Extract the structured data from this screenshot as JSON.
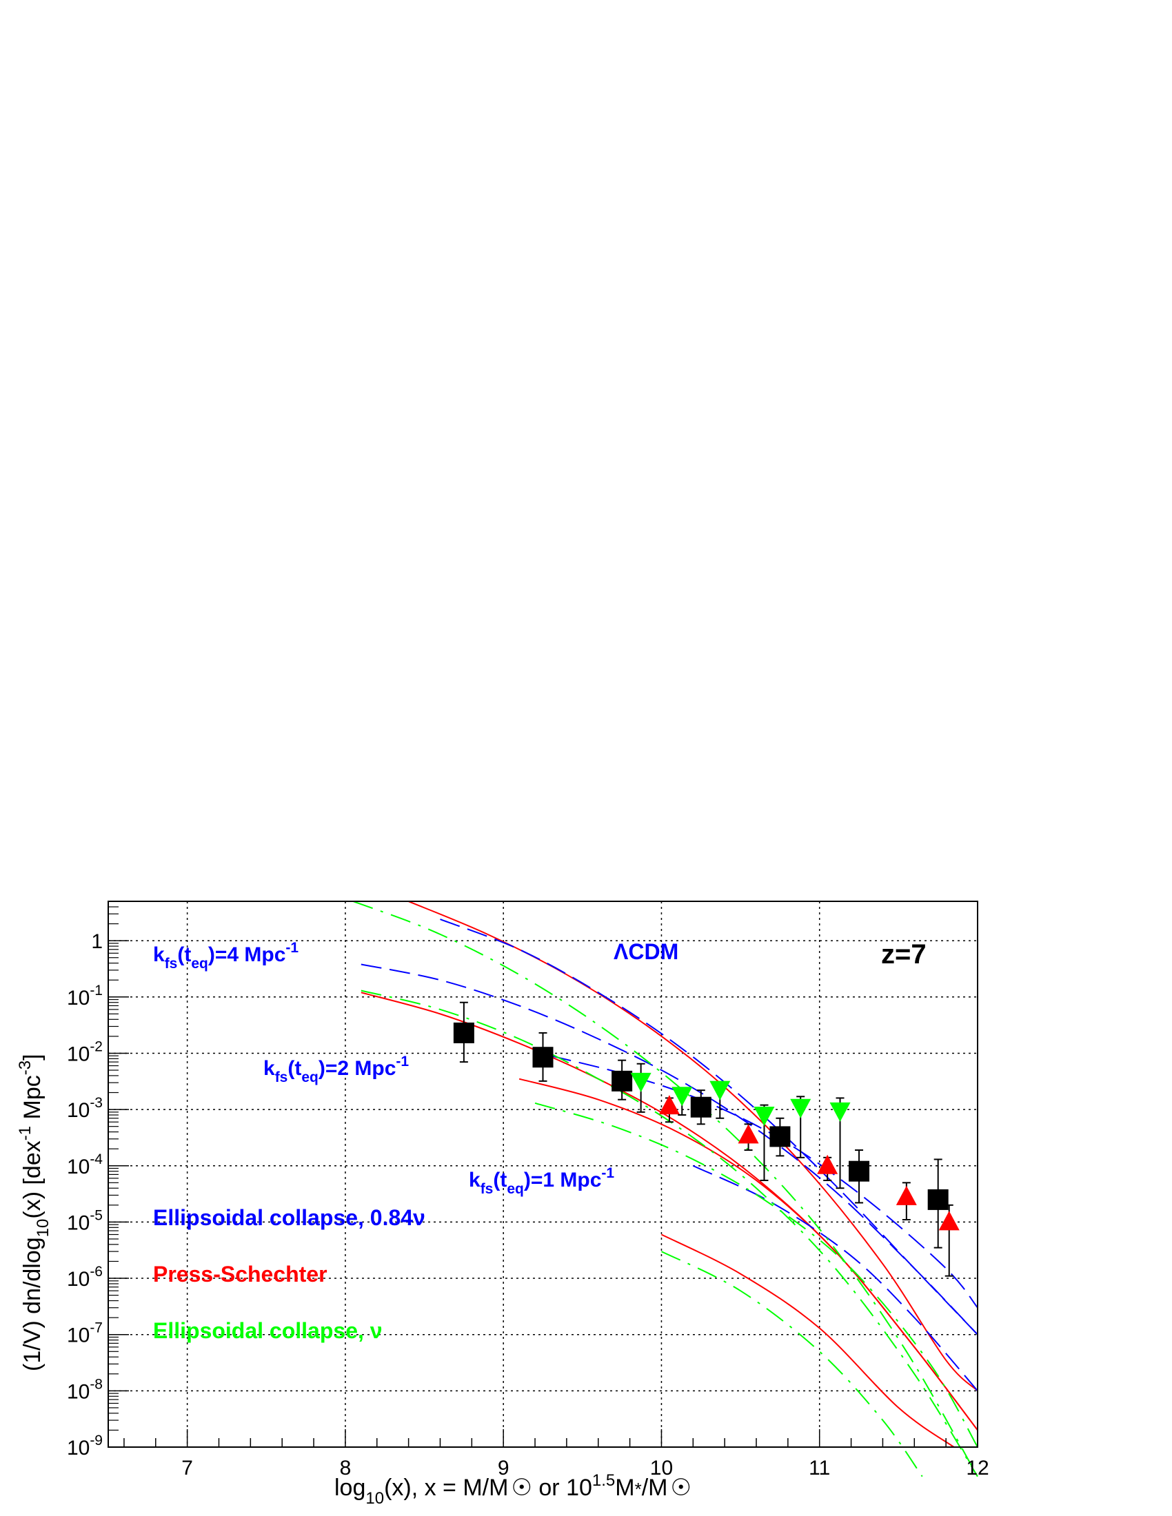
{
  "chart_data": {
    "type": "scatter",
    "log_y": true,
    "xlim": [
      6.5,
      12
    ],
    "ylim_exp": [
      -9,
      0.7
    ],
    "grid": true,
    "x_ticks": [
      "7",
      "8",
      "9",
      "10",
      "11",
      "12"
    ],
    "y_ticks": [
      {
        "base": "10",
        "exp": "-9"
      },
      {
        "base": "10",
        "exp": "-8"
      },
      {
        "base": "10",
        "exp": "-7"
      },
      {
        "base": "10",
        "exp": "-6"
      },
      {
        "base": "10",
        "exp": "-5"
      },
      {
        "base": "10",
        "exp": "-4"
      },
      {
        "base": "10",
        "exp": "-3"
      },
      {
        "base": "10",
        "exp": "-2"
      },
      {
        "base": "10",
        "exp": "-1"
      },
      {
        "base": "1",
        "exp": ""
      }
    ],
    "xlabel": {
      "a": "log",
      "b": "10",
      "c": "(x),  x = M/M",
      "d": "  or   10",
      "e": "1.5",
      "f": "M",
      "g": "*",
      "h": "/M"
    },
    "ylabel": {
      "a": "(1/V) dn/dlog",
      "b": "10",
      "c": "(x)  [dex",
      "d": "-1",
      "e": " Mpc",
      "f": "-3",
      "g": "]"
    },
    "annotations": {
      "kfs4": {
        "k": "k",
        "fs": "fs",
        "t": "(t",
        "eq": "eq",
        "rest": ")=4 Mpc",
        "exp": "-1"
      },
      "kfs2": {
        "k": "k",
        "fs": "fs",
        "t": "(t",
        "eq": "eq",
        "rest": ")=2 Mpc",
        "exp": "-1"
      },
      "kfs1": {
        "k": "k",
        "fs": "fs",
        "t": "(t",
        "eq": "eq",
        "rest": ")=1 Mpc",
        "exp": "-1"
      },
      "lcdm": "ΛCDM",
      "redshift": "z=7"
    },
    "legend": [
      {
        "label": "Ellipsoidal collapse, 0.84ν",
        "color": "#0000ff"
      },
      {
        "label": "Press-Schechter",
        "color": "#ff0000"
      },
      {
        "label": "Ellipsoidal collapse, ν",
        "color": "#00ff00"
      }
    ],
    "colors": {
      "ellipsoidal_084": "#0000ff",
      "press_schechter": "#ff0000",
      "ellipsoidal_nu": "#00ff00",
      "squares": "#000000"
    },
    "series": [
      {
        "marker": "square",
        "color": "#000000",
        "points": [
          {
            "x": 8.75,
            "y": 0.023,
            "lo": 0.007,
            "hi": 0.08
          },
          {
            "x": 9.25,
            "y": 0.0085,
            "lo": 0.0032,
            "hi": 0.023
          },
          {
            "x": 9.75,
            "y": 0.0032,
            "lo": 0.0015,
            "hi": 0.0075
          },
          {
            "x": 10.25,
            "y": 0.0011,
            "lo": 0.00055,
            "hi": 0.0022
          },
          {
            "x": 10.75,
            "y": 0.00033,
            "lo": 0.00015,
            "hi": 0.0007
          },
          {
            "x": 11.25,
            "y": 8e-05,
            "lo": 2.2e-05,
            "hi": 0.00019
          },
          {
            "x": 11.75,
            "y": 2.5e-05,
            "lo": 3.5e-06,
            "hi": 0.00013
          }
        ]
      },
      {
        "marker": "triangle-up",
        "color": "#ff0000",
        "points": [
          {
            "x": 10.05,
            "y": 0.00115,
            "lo": 0.0006,
            "hi": 0.0016
          },
          {
            "x": 10.55,
            "y": 0.00035,
            "lo": 0.00019,
            "hi": 0.00055
          },
          {
            "x": 11.05,
            "y": 0.0001,
            "lo": 5.5e-05,
            "hi": 0.00014
          },
          {
            "x": 11.55,
            "y": 2.8e-05,
            "lo": 1.1e-05,
            "hi": 5e-05
          },
          {
            "x": 11.82,
            "y": 1e-05,
            "lo": 1.1e-06,
            "hi": 2e-05
          }
        ]
      },
      {
        "marker": "triangle-down",
        "color": "#00ff00",
        "points": [
          {
            "x": 9.87,
            "y": 0.0032,
            "lo": 0.0009,
            "hi": 0.0065
          },
          {
            "x": 10.13,
            "y": 0.0018,
            "lo": 0.0008,
            "hi": 0.0022
          },
          {
            "x": 10.37,
            "y": 0.0023,
            "lo": 0.0007,
            "hi": 0.003
          },
          {
            "x": 10.65,
            "y": 0.0008,
            "lo": 5.5e-05,
            "hi": 0.0012
          },
          {
            "x": 10.88,
            "y": 0.0011,
            "lo": 0.00014,
            "hi": 0.0017
          },
          {
            "x": 11.13,
            "y": 0.00095,
            "lo": 4e-05,
            "hi": 0.0016
          }
        ]
      }
    ],
    "curves": [
      {
        "family": "press_schechter",
        "style": "solid",
        "points": [
          [
            8.4,
            5.0
          ],
          [
            8.9,
            1.3
          ],
          [
            9.4,
            0.25
          ],
          [
            9.9,
            0.032
          ],
          [
            10.4,
            0.0025
          ],
          [
            10.9,
            0.0001
          ],
          [
            11.4,
            1.8e-06
          ],
          [
            11.8,
            3.5e-08
          ],
          [
            12,
            1e-08
          ]
        ]
      },
      {
        "family": "press_schechter",
        "style": "solid",
        "points": [
          [
            8.1,
            0.12
          ],
          [
            8.6,
            0.05
          ],
          [
            9.1,
            0.015
          ],
          [
            9.6,
            0.0035
          ],
          [
            10.1,
            0.0006
          ],
          [
            10.6,
            6e-05
          ],
          [
            11.1,
            3e-06
          ],
          [
            11.6,
            6e-08
          ],
          [
            12,
            2e-09
          ]
        ]
      },
      {
        "family": "press_schechter",
        "style": "solid",
        "points": [
          [
            9.1,
            0.0035
          ],
          [
            9.6,
            0.0015
          ],
          [
            10.1,
            0.0004
          ],
          [
            10.6,
            5.5e-05
          ],
          [
            11.1,
            3e-06
          ],
          [
            11.6,
            6e-08
          ],
          [
            12,
            2e-09
          ]
        ]
      },
      {
        "family": "press_schechter",
        "style": "solid",
        "points": [
          [
            10,
            6e-06
          ],
          [
            10.5,
            1.2e-06
          ],
          [
            11,
            1.3e-07
          ],
          [
            11.5,
            5e-09
          ],
          [
            11.85,
            1e-09
          ]
        ]
      },
      {
        "family": "ellipsoidal_084",
        "style": "long-dash",
        "points": [
          [
            8.6,
            2.4
          ],
          [
            9.1,
            0.7
          ],
          [
            9.6,
            0.12
          ],
          [
            10.1,
            0.014
          ],
          [
            10.6,
            0.001
          ],
          [
            11.1,
            4.5e-05
          ],
          [
            11.6,
            1.5e-06
          ],
          [
            12,
            1e-07
          ]
        ]
      },
      {
        "family": "ellipsoidal_084",
        "style": "long-dash",
        "points": [
          [
            8.1,
            0.38
          ],
          [
            8.6,
            0.2
          ],
          [
            9.1,
            0.07
          ],
          [
            9.6,
            0.018
          ],
          [
            10.1,
            0.0035
          ],
          [
            10.6,
            0.00045
          ],
          [
            11.1,
            3.5e-05
          ],
          [
            11.6,
            1.5e-06
          ],
          [
            12,
            1e-07
          ]
        ]
      },
      {
        "family": "ellipsoidal_084",
        "style": "long-dash",
        "points": [
          [
            9.3,
            0.009
          ],
          [
            9.8,
            0.004
          ],
          [
            10.3,
            0.0013
          ],
          [
            10.8,
            0.00025
          ],
          [
            11.3,
            2.5e-05
          ],
          [
            11.8,
            1.5e-06
          ],
          [
            12,
            3e-07
          ]
        ]
      },
      {
        "family": "ellipsoidal_084",
        "style": "long-dash",
        "points": [
          [
            10.2,
            0.0001
          ],
          [
            10.7,
            2.2e-05
          ],
          [
            11.2,
            2.5e-06
          ],
          [
            11.6,
            2e-07
          ],
          [
            12,
            1e-08
          ]
        ]
      },
      {
        "family": "ellipsoidal_nu",
        "style": "dash-dot",
        "points": [
          [
            8.05,
            5.0
          ],
          [
            8.55,
            1.5
          ],
          [
            9.05,
            0.3
          ],
          [
            9.55,
            0.04
          ],
          [
            10.05,
            0.0035
          ],
          [
            10.55,
            0.00019
          ],
          [
            11.05,
            5e-06
          ],
          [
            11.55,
            5e-08
          ],
          [
            12,
            3e-10
          ]
        ]
      },
      {
        "family": "ellipsoidal_nu",
        "style": "dash-dot",
        "points": [
          [
            8.1,
            0.13
          ],
          [
            8.6,
            0.06
          ],
          [
            9.1,
            0.018
          ],
          [
            9.6,
            0.0035
          ],
          [
            10.1,
            0.0005
          ],
          [
            10.6,
            4e-05
          ],
          [
            11.1,
            1.5e-06
          ],
          [
            11.6,
            2e-08
          ],
          [
            12,
            3e-10
          ]
        ]
      },
      {
        "family": "ellipsoidal_nu",
        "style": "dash-dot",
        "points": [
          [
            9.2,
            0.0013
          ],
          [
            9.7,
            0.0005
          ],
          [
            10.2,
            0.00013
          ],
          [
            10.7,
            2e-05
          ],
          [
            11.2,
            1.5e-06
          ],
          [
            11.7,
            3e-08
          ],
          [
            12,
            1e-09
          ]
        ]
      },
      {
        "family": "ellipsoidal_nu",
        "style": "dash-dot",
        "points": [
          [
            10,
            3e-06
          ],
          [
            10.5,
            6e-07
          ],
          [
            11,
            5e-08
          ],
          [
            11.4,
            3e-09
          ],
          [
            11.65,
            3e-10
          ]
        ]
      }
    ]
  }
}
